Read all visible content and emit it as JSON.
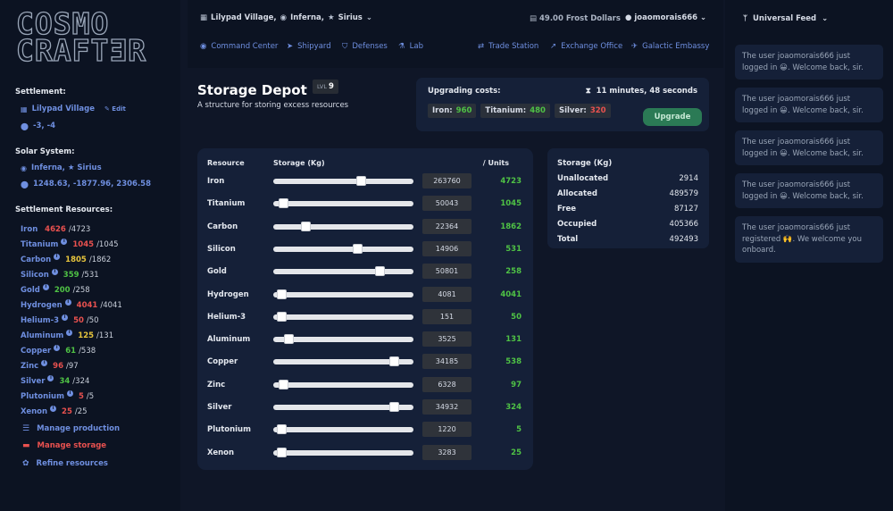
{
  "logo": {
    "line1": "COSMO",
    "line2": "CRAFTƎR"
  },
  "settlement": {
    "heading": "Settlement:",
    "name": "Lilypad Village",
    "edit": "Edit",
    "coords": "-3, -4"
  },
  "solar": {
    "heading": "Solar System:",
    "name": "Inferna, ★ Sirius",
    "coords": "1248.63, -1877.96, 2306.58"
  },
  "resources_heading": "Settlement Resources:",
  "resources": [
    {
      "name": "Iron",
      "value": "4626",
      "max": "/4723",
      "color": "red",
      "info": false
    },
    {
      "name": "Titanium",
      "value": "1045",
      "max": "/1045",
      "color": "red",
      "info": true
    },
    {
      "name": "Carbon",
      "value": "1805",
      "max": "/1862",
      "color": "yel",
      "info": true
    },
    {
      "name": "Silicon",
      "value": "359",
      "max": "/531",
      "color": "grn",
      "info": true
    },
    {
      "name": "Gold",
      "value": "200",
      "max": "/258",
      "color": "grn",
      "info": true
    },
    {
      "name": "Hydrogen",
      "value": "4041",
      "max": "/4041",
      "color": "red",
      "info": true
    },
    {
      "name": "Helium-3",
      "value": "50",
      "max": "/50",
      "color": "red",
      "info": true
    },
    {
      "name": "Aluminum",
      "value": "125",
      "max": "/131",
      "color": "yel",
      "info": true
    },
    {
      "name": "Copper",
      "value": "61",
      "max": "/538",
      "color": "grn",
      "info": true
    },
    {
      "name": "Zinc",
      "value": "96",
      "max": "/97",
      "color": "red",
      "info": true
    },
    {
      "name": "Silver",
      "value": "34",
      "max": "/324",
      "color": "grn",
      "info": true
    },
    {
      "name": "Plutonium",
      "value": "5",
      "max": "/5",
      "color": "red",
      "info": true
    },
    {
      "name": "Xenon",
      "value": "25",
      "max": "/25",
      "color": "red",
      "info": true
    }
  ],
  "menu": [
    {
      "label": "Manage production",
      "icon": "list-icon",
      "color": "#6f8fe0"
    },
    {
      "label": "Manage storage",
      "icon": "storage-icon",
      "color": "#e9514f"
    },
    {
      "label": "Refine resources",
      "icon": "gear-icon",
      "color": "#6f8fe0"
    }
  ],
  "topbar": {
    "location": {
      "village": "Lilypad Village,",
      "planet": "Inferna,",
      "star": "Sirius"
    },
    "frost_dollars": "49.00 Frost Dollars",
    "username": "joaomorais666",
    "nav_left": [
      "Command Center",
      "Shipyard",
      "Defenses",
      "Lab"
    ],
    "nav_right": [
      "Trade Station",
      "Exchange Office",
      "Galactic Embassy"
    ]
  },
  "building": {
    "title": "Storage Depot",
    "level_label": "LVL",
    "level": "9",
    "subtitle": "A structure for storing excess resources"
  },
  "upgrade": {
    "label": "Upgrading costs:",
    "time": "11 minutes, 48 seconds",
    "costs": [
      {
        "name": "Iron:",
        "value": "960",
        "color": "#4fc245"
      },
      {
        "name": "Titanium:",
        "value": "480",
        "color": "#4fc245"
      },
      {
        "name": "Silver:",
        "value": "320",
        "color": "#e9514f"
      }
    ],
    "button": "Upgrade"
  },
  "storage_table": {
    "headers": {
      "resource": "Resource",
      "storage": "Storage (Kg)",
      "units": "/ Units"
    },
    "rows": [
      {
        "name": "Iron",
        "kg": "263760",
        "units": "4723",
        "fill": 0.64
      },
      {
        "name": "Titanium",
        "kg": "50043",
        "units": "1045",
        "fill": 0.04
      },
      {
        "name": "Carbon",
        "kg": "22364",
        "units": "1862",
        "fill": 0.21
      },
      {
        "name": "Silicon",
        "kg": "14906",
        "units": "531",
        "fill": 0.61
      },
      {
        "name": "Gold",
        "kg": "50801",
        "units": "258",
        "fill": 0.78
      },
      {
        "name": "Hydrogen",
        "kg": "4081",
        "units": "4041",
        "fill": 0.03
      },
      {
        "name": "Helium-3",
        "kg": "151",
        "units": "50",
        "fill": 0.03
      },
      {
        "name": "Aluminum",
        "kg": "3525",
        "units": "131",
        "fill": 0.08
      },
      {
        "name": "Copper",
        "kg": "34185",
        "units": "538",
        "fill": 0.89
      },
      {
        "name": "Zinc",
        "kg": "6328",
        "units": "97",
        "fill": 0.04
      },
      {
        "name": "Silver",
        "kg": "34932",
        "units": "324",
        "fill": 0.89
      },
      {
        "name": "Plutonium",
        "kg": "1220",
        "units": "5",
        "fill": 0.03
      },
      {
        "name": "Xenon",
        "kg": "3283",
        "units": "25",
        "fill": 0.03
      }
    ]
  },
  "storage_summary": {
    "heading": "Storage (Kg)",
    "rows": [
      {
        "k": "Unallocated",
        "v": "2914"
      },
      {
        "k": "Allocated",
        "v": "489579"
      },
      {
        "k": "Free",
        "v": "87127"
      },
      {
        "k": "Occupied",
        "v": "405366"
      },
      {
        "k": "Total",
        "v": "492493"
      }
    ]
  },
  "feed": {
    "heading": "Universal Feed",
    "messages": [
      "The user joaomorais666 just logged in 😀. Welcome back, sir.",
      "The user joaomorais666 just logged in 😀. Welcome back, sir.",
      "The user joaomorais666 just logged in 😀. Welcome back, sir.",
      "The user joaomorais666 just logged in 😀. Welcome back, sir.",
      "The user joaomorais666 just registered 🙌. We welcome you onboard."
    ]
  }
}
